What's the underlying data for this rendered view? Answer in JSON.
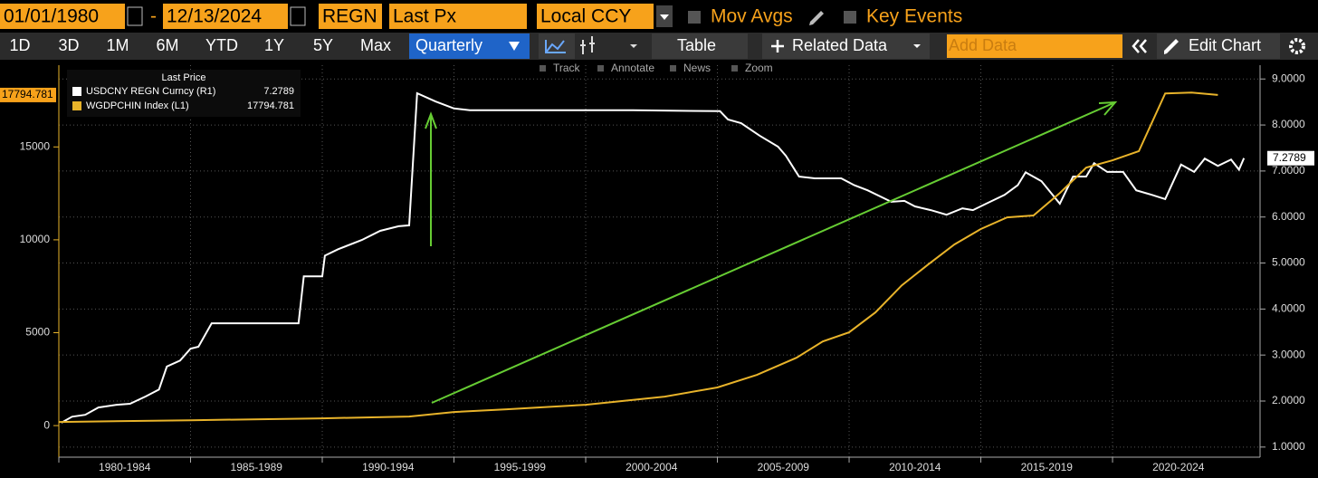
{
  "toolbar": {
    "start_date": "01/01/1980",
    "dash": "-",
    "end_date": "12/13/2024",
    "security": "REGN",
    "field": "Last Px",
    "currency": "Local CCY",
    "mov_avgs": "Mov Avgs",
    "key_events": "Key Events",
    "periods": [
      "1D",
      "3D",
      "1M",
      "6M",
      "YTD",
      "1Y",
      "5Y",
      "Max"
    ],
    "frequency": "Quarterly",
    "table": "Table",
    "related_data": "Related Data",
    "add_data": "Add Data",
    "edit_chart": "Edit Chart",
    "tools": [
      "Track",
      "Annotate",
      "News",
      "Zoom"
    ]
  },
  "chart_data": {
    "type": "line",
    "legend_title": "Last Price",
    "grid": true,
    "xlim": [
      1980,
      2025.6
    ],
    "xticks": [
      {
        "value": 1980,
        "label": "1980-1984"
      },
      {
        "value": 1985,
        "label": "1985-1989"
      },
      {
        "value": 1990,
        "label": "1990-1994"
      },
      {
        "value": 1995,
        "label": "1995-1999"
      },
      {
        "value": 2000,
        "label": "2000-2004"
      },
      {
        "value": 2005,
        "label": "2005-2009"
      },
      {
        "value": 2010,
        "label": "2010-2014"
      },
      {
        "value": 2015,
        "label": "2015-2019"
      },
      {
        "value": 2020,
        "label": "2020-2024"
      }
    ],
    "ylim": [
      -1700,
      19400
    ],
    "yticks": [
      0,
      5000,
      10000,
      15000
    ],
    "y2lim": [
      0.78,
      9.3
    ],
    "y2ticks": [
      {
        "value": 1,
        "label": "1.0000"
      },
      {
        "value": 2,
        "label": "2.0000"
      },
      {
        "value": 3,
        "label": "3.0000"
      },
      {
        "value": 4,
        "label": "4.0000"
      },
      {
        "value": 5,
        "label": "5.0000"
      },
      {
        "value": 6,
        "label": "6.0000"
      },
      {
        "value": 7,
        "label": "7.0000"
      },
      {
        "value": 8,
        "label": "8.0000"
      },
      {
        "value": 9,
        "label": "9.0000"
      }
    ],
    "series": [
      {
        "name": "USDCNY REGN Curncy (R1)",
        "color": "#ffffff",
        "axis": "y2",
        "x": [
          1980.1,
          1980.5,
          1981,
          1981.5,
          1982.2,
          1982.7,
          1983.3,
          1983.8,
          1984.1,
          1984.6,
          1985,
          1985.3,
          1985.8,
          1986.9,
          1988.1,
          1989.1,
          1989.3,
          1990,
          1990.1,
          1990.6,
          1991.5,
          1992.2,
          1992.9,
          1993.3,
          1993.6,
          1994.3,
          1995,
          1995.6,
          1997,
          2001.8,
          2005.1,
          2005.4,
          2005.9,
          2006.6,
          2007.3,
          2007.6,
          2008.1,
          2008.7,
          2009.7,
          2010.2,
          2010.7,
          2011.6,
          2012.1,
          2012.5,
          2013.1,
          2013.7,
          2014.3,
          2014.7,
          2015.2,
          2015.9,
          2016.4,
          2016.7,
          2017.3,
          2018,
          2018.5,
          2019,
          2019.3,
          2019.8,
          2020.4,
          2020.9,
          2021.5,
          2022,
          2022.6,
          2023.1,
          2023.5,
          2024,
          2024.5,
          2024.8,
          2024.99
        ],
        "values": [
          1.53,
          1.66,
          1.7,
          1.86,
          1.92,
          1.94,
          2.1,
          2.25,
          2.75,
          2.88,
          3.14,
          3.18,
          3.69,
          3.69,
          3.69,
          3.69,
          4.71,
          4.71,
          5.16,
          5.3,
          5.5,
          5.7,
          5.8,
          5.82,
          8.69,
          8.51,
          8.36,
          8.32,
          8.32,
          8.32,
          8.3,
          8.12,
          8.04,
          7.77,
          7.53,
          7.33,
          6.88,
          6.84,
          6.84,
          6.69,
          6.58,
          6.33,
          6.35,
          6.23,
          6.15,
          6.05,
          6.19,
          6.15,
          6.29,
          6.48,
          6.69,
          6.97,
          6.78,
          6.29,
          6.88,
          6.88,
          7.17,
          6.98,
          6.98,
          6.58,
          6.48,
          6.39,
          7.14,
          6.98,
          7.27,
          7.11,
          7.25,
          7.03,
          7.2789
        ]
      },
      {
        "name": "WGDPCHIN Index (L1)",
        "color": "#e8b32a",
        "axis": "y",
        "x": [
          1980,
          1985,
          1990,
          1993.3,
          1995,
          1997,
          2000,
          2003,
          2005,
          2006.5,
          2008,
          2009,
          2010,
          2011,
          2012,
          2013,
          2014,
          2015,
          2016,
          2017,
          2018,
          2019,
          2020,
          2021,
          2022,
          2023,
          2024
        ],
        "values": [
          195,
          290,
          390,
          490,
          730,
          880,
          1120,
          1560,
          2050,
          2730,
          3650,
          4530,
          5020,
          6090,
          7550,
          8670,
          9750,
          10580,
          11210,
          11310,
          12520,
          13890,
          14280,
          14770,
          17880,
          17930,
          17794.781
        ]
      }
    ]
  }
}
